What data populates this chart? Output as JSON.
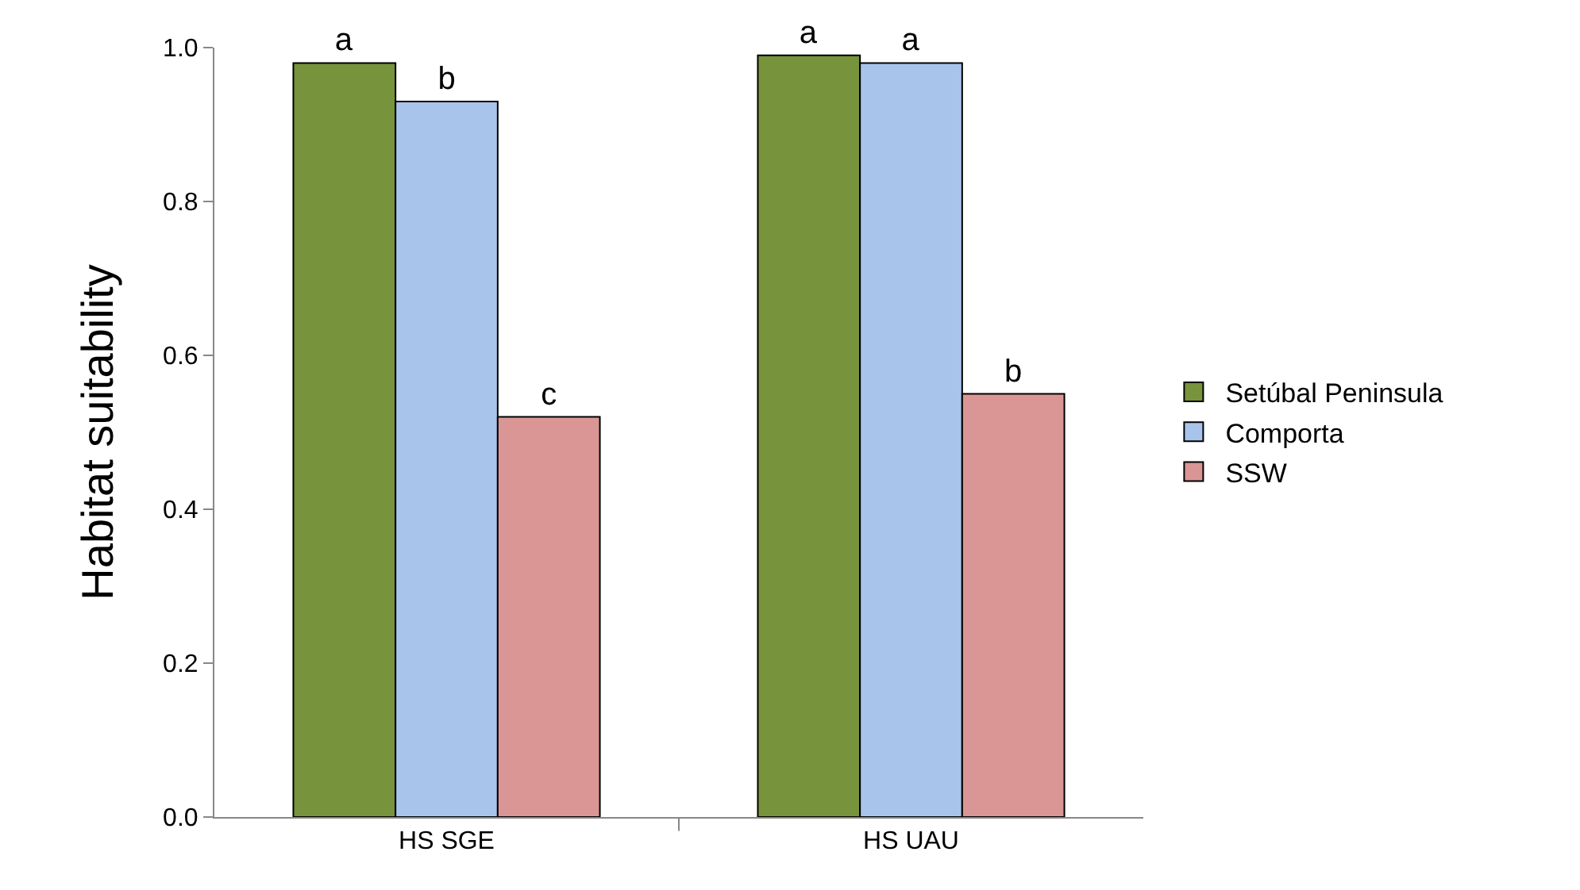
{
  "chart_data": {
    "type": "bar",
    "ylabel": "Habitat suitability",
    "categories": [
      "HS SGE",
      "HS UAU"
    ],
    "series": [
      {
        "name": "Setúbal Peninsula",
        "color": "#77933c",
        "values": [
          0.98,
          0.99
        ],
        "value_labels": [
          "a",
          "a"
        ]
      },
      {
        "name": "Comporta",
        "color": "#a9c4eb",
        "values": [
          0.93,
          0.98
        ],
        "value_labels": [
          "b",
          "a"
        ]
      },
      {
        "name": "SSW",
        "color": "#d99694",
        "values": [
          0.52,
          0.55
        ],
        "value_labels": [
          "c",
          "b"
        ]
      }
    ],
    "ylim": [
      0,
      1
    ],
    "yticks": [
      {
        "value": 0,
        "label": "0.0"
      },
      {
        "value": 0.2,
        "label": "0.2"
      },
      {
        "value": 0.4,
        "label": "0.4"
      },
      {
        "value": 0.6,
        "label": "0.6"
      },
      {
        "value": 0.8,
        "label": "0.8"
      },
      {
        "value": 1,
        "label": "1.0"
      }
    ],
    "grid": false,
    "legend": "right"
  }
}
